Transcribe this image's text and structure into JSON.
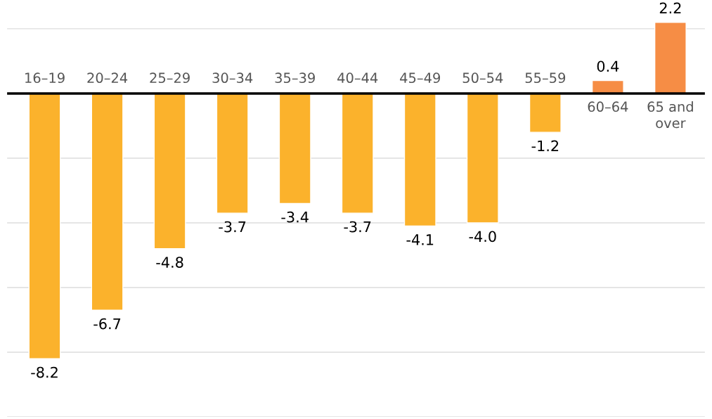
{
  "chart_data": {
    "type": "bar",
    "categories": [
      "16–19",
      "20–24",
      "25–29",
      "30–34",
      "35–39",
      "40–44",
      "45–49",
      "50–54",
      "55–59",
      "60–64",
      "65 and\nover"
    ],
    "values": [
      -8.2,
      -6.7,
      -4.8,
      -3.7,
      -3.4,
      -3.7,
      -4.1,
      -4.0,
      -1.2,
      0.4,
      2.2
    ],
    "colors": [
      "#fbb22c",
      "#fbb22c",
      "#fbb22c",
      "#fbb22c",
      "#fbb22c",
      "#fbb22c",
      "#fbb22c",
      "#fbb22c",
      "#fbb22c",
      "#f68d45",
      "#f68d45"
    ],
    "yticks": [
      {
        "value": -10,
        "label": null
      },
      {
        "value": -8,
        "label": null
      },
      {
        "value": -6,
        "label": null
      },
      {
        "value": -4,
        "label": null
      },
      {
        "value": -2,
        "label": null
      },
      {
        "value": 0,
        "label": null
      },
      {
        "value": 2,
        "label": null
      }
    ],
    "value_labels": [
      "-8.2",
      "-6.7",
      "-4.8",
      "-3.7",
      "-3.4",
      "-3.7",
      "-4.1",
      "-4.0",
      "-1.2",
      "0.4",
      "2.2"
    ],
    "grid": "y",
    "tick_labels": "x"
  }
}
